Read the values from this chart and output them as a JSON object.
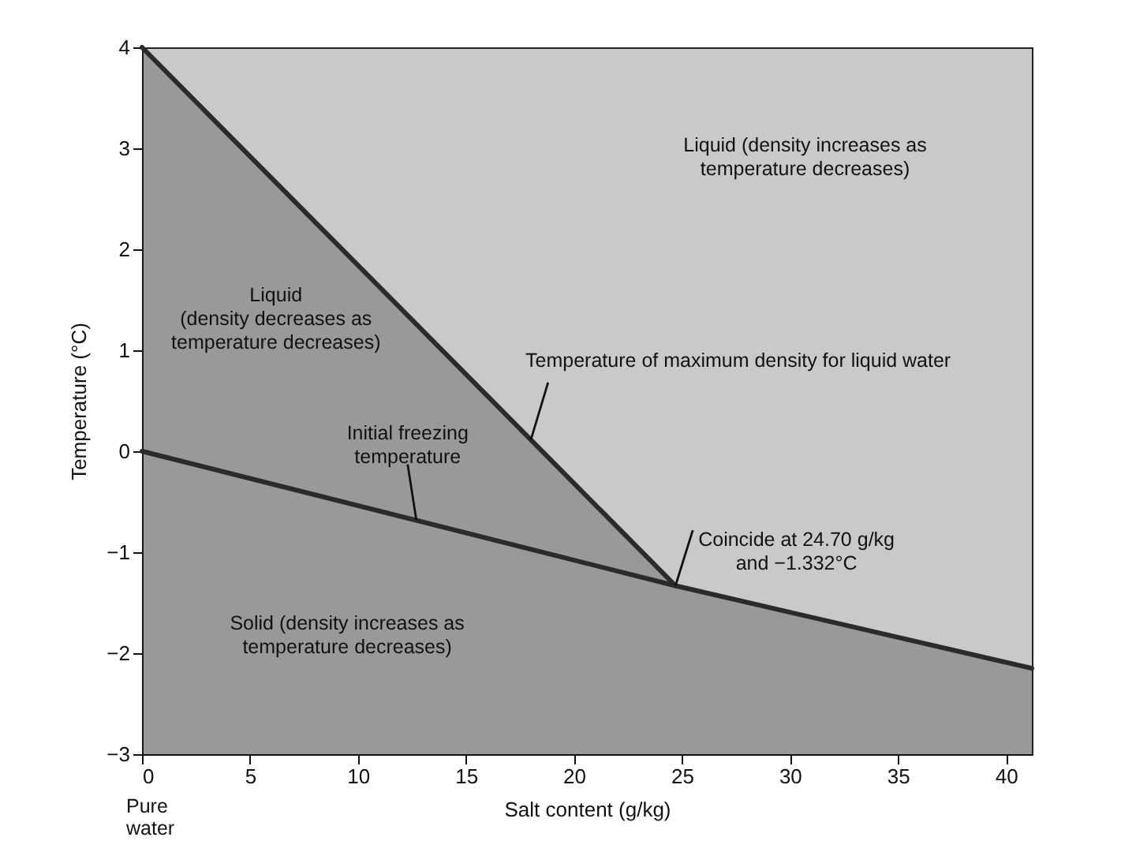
{
  "chart_data": {
    "type": "line",
    "xlabel": "Salt content (g/kg)",
    "ylabel": "Temperature (°C)",
    "xlim": [
      0,
      41.2
    ],
    "ylim": [
      -3,
      4
    ],
    "xticks": [
      0,
      5,
      10,
      15,
      20,
      25,
      30,
      35,
      40
    ],
    "yticks": [
      {
        "value": -3,
        "label": "−3"
      },
      {
        "value": -2,
        "label": "−2"
      },
      {
        "value": -1,
        "label": "−1"
      },
      0,
      1,
      2,
      3,
      4
    ],
    "series": [
      {
        "color": "#2b2b2b",
        "x": [
          0,
          24.7
        ],
        "values": [
          4,
          -1.332
        ],
        "lower": [
          0,
          -1.332
        ],
        "upper": [
          4,
          -1.332
        ]
      },
      {
        "color": "#2b2b2b",
        "x": [
          0,
          24.7,
          41.2
        ],
        "values": [
          0,
          -1.332,
          -2.15
        ],
        "lower": [
          -3,
          -3,
          -3
        ],
        "upper": [
          0,
          -1.332,
          -2.15
        ]
      }
    ],
    "annotations": [
      "Liquid (density increases as\ntemperature decreases)",
      "Liquid\n(density decreases as\ntemperature decreases)",
      "Solid (density increases as\ntemperature decreases)",
      {
        "text": "Temperature of maximum density for liquid water",
        "x": 18,
        "y": 0.11
      },
      {
        "text": "Initial freezing\ntemperature",
        "x": 12.7,
        "y": -0.68
      },
      {
        "text": "Coincide at 24.70 g/kg\nand −1.332°C",
        "x": 24.7,
        "y": -1.332
      },
      "Pure\nwater"
    ]
  }
}
